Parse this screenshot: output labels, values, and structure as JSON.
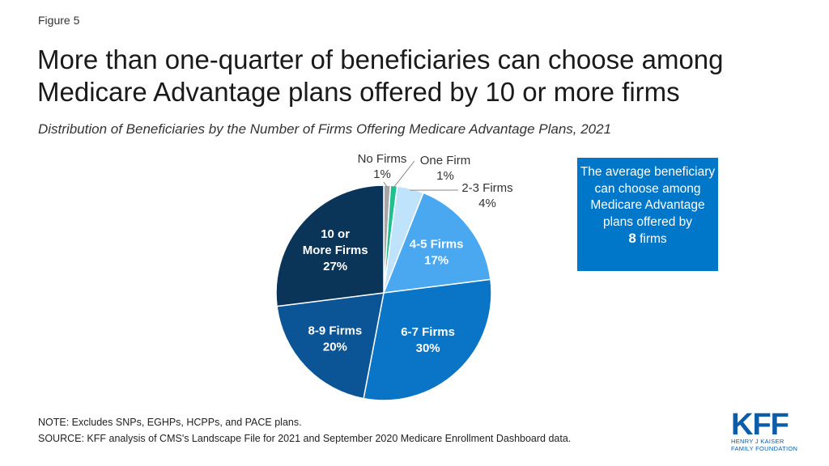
{
  "figure_label": "Figure 5",
  "title": "More than one-quarter of beneficiaries can choose among Medicare Advantage plans offered by 10 or more firms",
  "subtitle": "Distribution of Beneficiaries by the Number of Firms Offering Medicare Advantage Plans, 2021",
  "callout": {
    "line1": "The average beneficiary can choose among Medicare Advantage plans offered by",
    "number": "8",
    "unit": "firms",
    "color": "#0077c8"
  },
  "note": "NOTE: Excludes SNPs, EGHPs, HCPPs, and PACE plans.",
  "source": "SOURCE: KFF analysis of CMS's Landscape File for 2021 and September 2020 Medicare Enrollment Dashboard data.",
  "logo": {
    "mark": "KFF",
    "line1": "HENRY J KAISER",
    "line2": "FAMILY FOUNDATION"
  },
  "chart_data": {
    "type": "pie",
    "title": "Distribution of Beneficiaries by the Number of Firms Offering Medicare Advantage Plans, 2021",
    "slices": [
      {
        "label": "No Firms",
        "value": 1,
        "display": "1%",
        "color": "#a6a6a6"
      },
      {
        "label": "One Firm",
        "value": 1,
        "display": "1%",
        "color": "#1fbf8f"
      },
      {
        "label": "2-3 Firms",
        "value": 4,
        "display": "4%",
        "color": "#bfe3fb"
      },
      {
        "label": "4-5 Firms",
        "value": 17,
        "display": "17%",
        "color": "#4aa8f0"
      },
      {
        "label": "6-7 Firms",
        "value": 30,
        "display": "30%",
        "color": "#0a74c6"
      },
      {
        "label": "8-9 Firms",
        "value": 20,
        "display": "20%",
        "color": "#0b5596"
      },
      {
        "label": "10 or More Firms",
        "value": 27,
        "display": "27%",
        "color": "#0a3458"
      }
    ],
    "start_angle_deg": 0,
    "direction": "clockwise"
  }
}
